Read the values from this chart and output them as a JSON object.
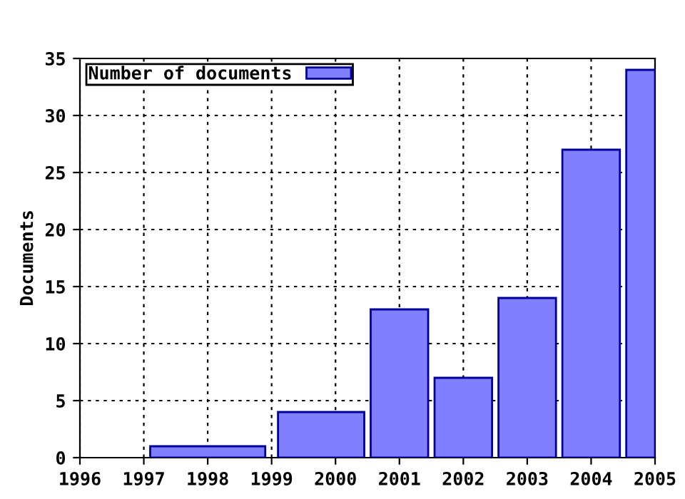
{
  "chart_data": {
    "type": "histogram",
    "ylabel": "Documents",
    "bins": [
      1997.1,
      1998.9,
      1999.1,
      2000.45,
      2000.55,
      2001.45,
      2001.55,
      2002.45,
      2002.55,
      2003.45,
      2003.55,
      2004.45,
      2004.55,
      2005
    ],
    "series": [
      {
        "name": "Number of documents",
        "color": "#8080ff",
        "values": [
          1,
          null,
          4,
          null,
          13,
          null,
          7,
          null,
          14,
          null,
          27,
          null,
          34
        ]
      }
    ],
    "xlim": [
      1996,
      2005
    ],
    "xticks": [
      1996,
      1997,
      1998,
      1999,
      2000,
      2001,
      2002,
      2003,
      2004,
      2005
    ],
    "ylim": [
      0,
      35
    ],
    "yticks": [
      0,
      5,
      10,
      15,
      20,
      25,
      30,
      35
    ],
    "grid": true,
    "legend": "top left"
  }
}
